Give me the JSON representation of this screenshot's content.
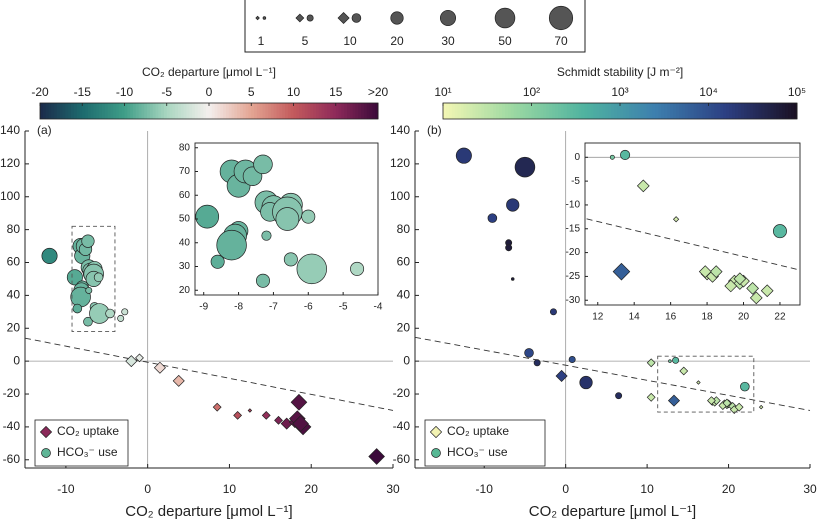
{
  "size_legend": {
    "items": [
      {
        "size": 1,
        "markers": [
          "diamond",
          "circle"
        ]
      },
      {
        "size": 5,
        "markers": [
          "diamond",
          "circle"
        ]
      },
      {
        "size": 10,
        "markers": [
          "diamond",
          "circle"
        ]
      },
      {
        "size": 20,
        "markers": [
          "circle"
        ]
      },
      {
        "size": 30,
        "markers": [
          "circle"
        ]
      },
      {
        "size": 50,
        "markers": [
          "circle"
        ]
      },
      {
        "size": 70,
        "markers": [
          "circle"
        ]
      }
    ]
  },
  "chart_data": [
    {
      "type": "scatter",
      "panel_label": "(a)",
      "xlabel": "CO₂ departure [μmol L⁻¹]",
      "xlim": [
        -15,
        30
      ],
      "xticks": [
        -10,
        0,
        10,
        20,
        30
      ],
      "ylim": [
        -65,
        140
      ],
      "yticks": [
        -60,
        -40,
        -20,
        0,
        20,
        40,
        60,
        80,
        100,
        120,
        140
      ],
      "trend_line": {
        "x": [
          -15,
          30
        ],
        "y": [
          14,
          -30
        ]
      },
      "color_by": "x",
      "colorbar": {
        "label": "CO₂ departure [μmol L⁻¹]",
        "range": [
          -20,
          20
        ],
        "ticks": [
          -20,
          -15,
          -10,
          -5,
          0,
          5,
          10,
          15,
          {
            "value": 20,
            "label": ">20"
          }
        ],
        "colormap": [
          "#1b2a4a",
          "#1d6a6e",
          "#3f9e88",
          "#a9d6c0",
          "#f4efee",
          "#e3a593",
          "#c35a5c",
          "#8e2a5a",
          "#3b0a3a"
        ]
      },
      "inset": {
        "xlim": [
          -9.25,
          -4
        ],
        "ylim": [
          18,
          82
        ],
        "xticks": [
          -9,
          -8,
          -7,
          -6,
          -5,
          -4
        ],
        "yticks": [
          20,
          30,
          40,
          50,
          60,
          70,
          80
        ],
        "zero_line": false
      },
      "series": [
        {
          "name": "CO₂ uptake",
          "marker": "diamond",
          "color": "#8b2a5a",
          "x": [
            -2,
            -1,
            1.5,
            3.8,
            8.5,
            11,
            12.5,
            14.5,
            16,
            17,
            18,
            18.5,
            18.3,
            19,
            18.7,
            28
          ],
          "y": [
            0,
            2,
            -4,
            -12,
            -28,
            -33,
            -30,
            -33,
            -36,
            -38,
            -37,
            -25,
            -35,
            -40,
            -38,
            -58
          ],
          "sizes": [
            10,
            5,
            10,
            10,
            5,
            5,
            1,
            5,
            5,
            10,
            10,
            20,
            20,
            20,
            20,
            20
          ]
        },
        {
          "name": "HCO₃⁻ use",
          "marker": "circle",
          "color": "#5fb596",
          "x": [
            -12,
            -8.2,
            -8.0,
            -7.8,
            -7.6,
            -7.3,
            -7.2,
            -7.0,
            -7.1,
            -6.5,
            -6.6,
            -6.6,
            -6.0,
            -8.9,
            -8.0,
            -8.1,
            -8.2,
            -8.6,
            -7.3,
            -6.5,
            -5.9,
            -4.6,
            -7.2,
            -3.3,
            -2.8
          ],
          "y": [
            64,
            70,
            64,
            70,
            68,
            73,
            57,
            55,
            53,
            56,
            53,
            50,
            51,
            51,
            45,
            43,
            39,
            32,
            24,
            33,
            29,
            29,
            43,
            26,
            30
          ],
          "sizes": [
            30,
            30,
            30,
            30,
            20,
            20,
            30,
            30,
            20,
            30,
            50,
            30,
            10,
            30,
            20,
            30,
            50,
            10,
            10,
            10,
            50,
            10,
            5,
            5,
            5
          ]
        }
      ]
    },
    {
      "type": "scatter",
      "panel_label": "(b)",
      "xlabel": "CO₂ departure [μmol L⁻¹]",
      "xlim": [
        -18.5,
        30
      ],
      "xticks": [
        -10,
        0,
        10,
        20,
        30
      ],
      "ylim": [
        -65,
        140
      ],
      "yticks": [
        -60,
        -40,
        -20,
        0,
        20,
        40,
        60,
        80,
        100,
        120,
        140
      ],
      "trend_line": {
        "x": [
          -18.5,
          30
        ],
        "y": [
          14.5,
          -30
        ]
      },
      "color_by": "stability",
      "colorbar": {
        "label": "Schmidt stability [J m⁻²]",
        "range": [
          1,
          5
        ],
        "ticks": [
          {
            "value": 1,
            "label": "10¹"
          },
          {
            "value": 2,
            "label": "10²"
          },
          {
            "value": 3,
            "label": "10³"
          },
          {
            "value": 4,
            "label": "10⁴"
          },
          {
            "value": 5,
            "label": "10⁵"
          }
        ],
        "colormap": [
          "#f4f7b4",
          "#9bd8a2",
          "#4fb3a0",
          "#3d7fae",
          "#2c3f82",
          "#1a1022"
        ]
      },
      "inset": {
        "xlim": [
          11.3,
          23.1
        ],
        "ylim": [
          -31,
          3
        ],
        "xticks": [
          12,
          14,
          16,
          18,
          20,
          22
        ],
        "yticks": [
          -30,
          -25,
          -20,
          -15,
          -10,
          -5,
          0
        ],
        "zero_line": true
      },
      "series": [
        {
          "name": "CO₂ uptake",
          "marker": "diamond",
          "color": "#f2f2b2",
          "x": [
            -0.5,
            10.5,
            10.5,
            13.3,
            14.5,
            16.3,
            18,
            18.3,
            18.5,
            17.9,
            19.5,
            19.8,
            19.3,
            20,
            20.5,
            20.7,
            21.3,
            19.8,
            24
          ],
          "y": [
            -9,
            -1,
            -22,
            -24,
            -6,
            -13,
            -24.5,
            -25,
            -24,
            -24,
            -26,
            -26.5,
            -27,
            -26,
            -27.5,
            -29.5,
            -28,
            -25.5,
            -28
          ],
          "sizes": [
            10,
            5,
            5,
            10,
            5,
            1,
            5,
            5,
            5,
            5,
            5,
            5,
            5,
            5,
            5,
            5,
            5,
            5,
            1
          ],
          "stability": [
            4.2,
            1.5,
            1.4,
            3.8,
            1.4,
            1.3,
            1.4,
            1.4,
            1.5,
            1.4,
            1.4,
            1.5,
            1.4,
            1.4,
            1.5,
            1.4,
            1.4,
            1.5,
            1.3
          ]
        },
        {
          "name": "HCO₃⁻ use",
          "marker": "circle",
          "color": "#56b894",
          "x": [
            -12.5,
            -5,
            -9,
            -6.5,
            -7,
            -7,
            -6.5,
            -1.5,
            -4.5,
            -3.5,
            0.8,
            2.5,
            6.5,
            13.5,
            12.8,
            22
          ],
          "y": [
            125,
            118,
            87,
            95,
            72,
            69,
            50,
            30,
            5,
            -1,
            1,
            -13,
            -21,
            0.5,
            0,
            -15.5
          ],
          "sizes": [
            30,
            50,
            10,
            20,
            5,
            5,
            1,
            5,
            10,
            5,
            5,
            20,
            5,
            5,
            1,
            10
          ],
          "stability": [
            4.3,
            4.6,
            4.2,
            4.3,
            4.8,
            4.8,
            4.8,
            4.3,
            4.1,
            4.5,
            4.0,
            4.4,
            4.5,
            2.5,
            2.2,
            2.5
          ]
        }
      ]
    }
  ]
}
